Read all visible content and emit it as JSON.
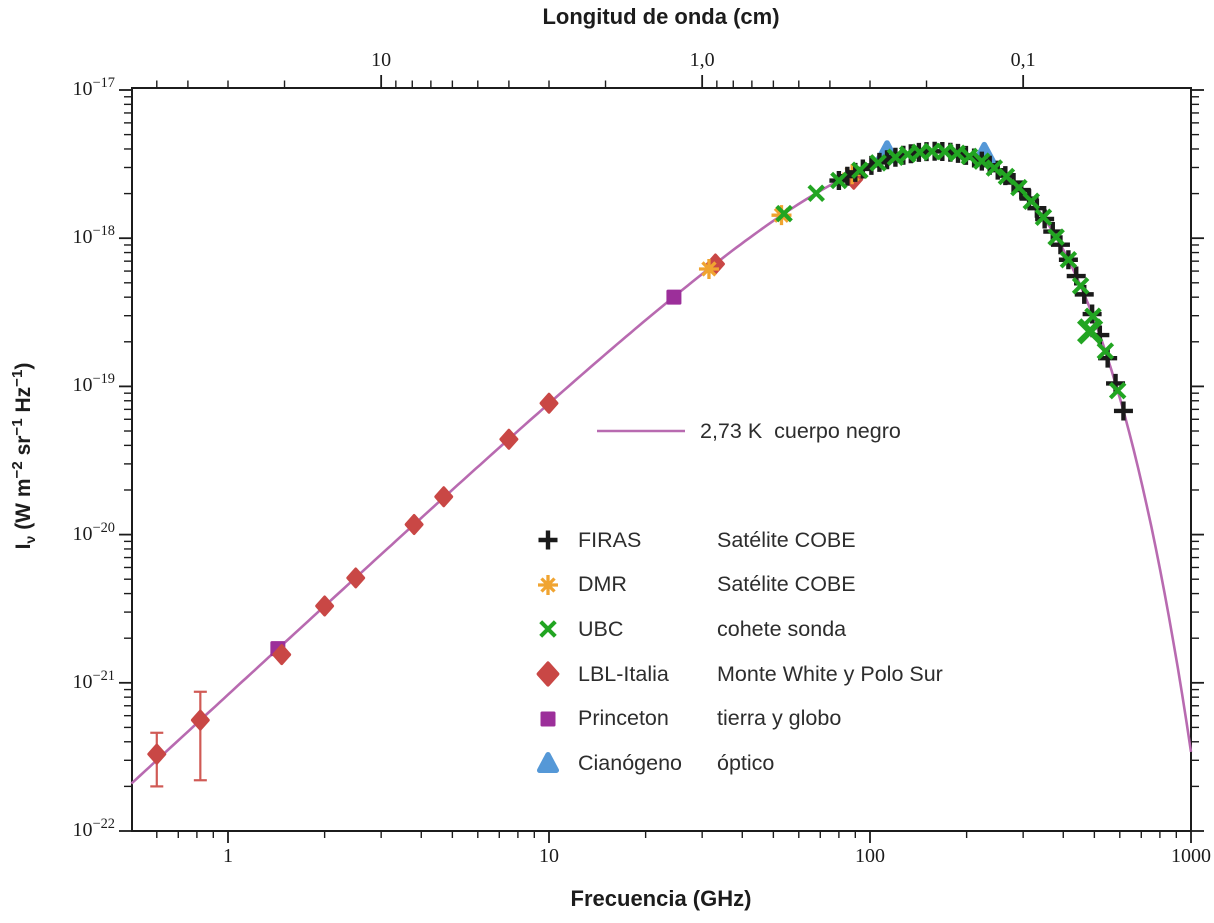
{
  "titles": {
    "top": "Longitud de onda (cm)",
    "bottom": "Frecuencia (GHz)"
  },
  "y_label_segments": [
    {
      "t": "I"
    },
    {
      "t": "ν",
      "sub": true
    },
    {
      "t": " (W m"
    },
    {
      "t": "−2",
      "sup": true
    },
    {
      "t": " sr"
    },
    {
      "t": "−1",
      "sup": true
    },
    {
      "t": " Hz"
    },
    {
      "t": "−1",
      "sup": true
    },
    {
      "t": ")"
    }
  ],
  "curve": {
    "label": "2,73 K  cuerpo negro",
    "color": "#b86ab0"
  },
  "colors": {
    "spine": "#1c1c1c",
    "tick": "#1c1c1c",
    "error_bar": "#d05a55",
    "background": "#ffffff"
  },
  "chart_data": {
    "type": "scatter",
    "title": "",
    "xlabel": "Frecuencia (GHz)",
    "xlabel_top": "Longitud de onda (cm)",
    "ylabel": "Iν (W m−2 sr−1 Hz−1)",
    "axes": {
      "x": {
        "scale": "log",
        "range_GHz": [
          0.5,
          1000
        ],
        "major": [
          1,
          10,
          100,
          1000
        ],
        "major_labels": [
          "1",
          "10",
          "100",
          "1000"
        ],
        "minor": [
          0.6,
          0.7,
          0.8,
          0.9,
          2,
          3,
          4,
          5,
          6,
          7,
          8,
          9,
          20,
          30,
          40,
          50,
          60,
          70,
          80,
          90,
          200,
          300,
          400,
          500,
          600,
          700,
          800,
          900
        ]
      },
      "x_top": {
        "scale": "log-wavelength",
        "c_cm_GHz": 30,
        "major_cm": [
          10,
          1.0,
          0.1
        ],
        "major_labels": [
          "10",
          "1,0",
          "0,1"
        ],
        "minor_cm": [
          50,
          40,
          30,
          20,
          9,
          8,
          7,
          6,
          5,
          4,
          3,
          2,
          0.9,
          0.8,
          0.7,
          0.6,
          0.5,
          0.4,
          0.3,
          0.2
        ]
      },
      "y": {
        "scale": "log",
        "range": [
          1e-22,
          1e-17
        ],
        "major_exp": [
          -17,
          -18,
          -19,
          -20,
          -21,
          -22
        ],
        "minor_mantissas": [
          2,
          3,
          4,
          5,
          6,
          7,
          8,
          9
        ],
        "minor_decades": [
          -18,
          -19,
          -20,
          -21,
          -22
        ]
      }
    },
    "blackbody_curve": {
      "label": "2,73 K  cuerpo negro",
      "temperature_K": 2.73,
      "f_range_GHz": [
        0.5,
        1000
      ],
      "color": "#b86ab0"
    },
    "series": [
      {
        "id": "firas",
        "label": "FIRAS",
        "source": "Satélite COBE",
        "marker": "plus",
        "color": "#1a1a1a",
        "on_curve": true,
        "points_GHz": [
          80,
          85,
          90,
          95,
          101,
          107,
          113,
          120,
          127,
          134,
          142,
          150,
          159,
          168,
          178,
          188,
          199,
          211,
          223,
          236,
          250,
          264,
          280,
          296,
          313,
          331,
          350,
          371,
          392,
          415,
          439,
          465,
          492,
          520,
          550,
          582,
          616
        ]
      },
      {
        "id": "dmr",
        "label": "DMR",
        "source": "Satélite COBE",
        "marker": "asterisk",
        "color": "#f0a431",
        "points": [
          {
            "f": 31.5,
            "i": 6.2e-19
          },
          {
            "f": 53,
            "i": 1.43e-18
          },
          {
            "f": 88,
            "i": 2.7e-18
          }
        ]
      },
      {
        "id": "ubc",
        "label": "UBC",
        "source": "cohete sonda",
        "marker": "x",
        "color": "#22a522",
        "on_curve": true,
        "points_GHz": [
          54,
          68,
          80,
          93,
          106,
          120,
          131,
          143,
          156,
          171,
          187,
          204,
          223,
          244,
          266,
          291,
          318,
          347,
          380,
          415,
          453,
          495,
          541,
          591
        ],
        "outliers": [
          {
            "f": 485,
            "i": 2.35e-19,
            "scale": 1.5
          }
        ]
      },
      {
        "id": "lbl",
        "label": "LBL-Italia",
        "source": "Monte White y Polo Sur",
        "marker": "diamond",
        "color": "#c94745",
        "points": [
          {
            "f": 0.6,
            "i": 3.3e-22,
            "err_lo": 2e-22,
            "err_hi": 4.6e-22
          },
          {
            "f": 0.82,
            "i": 5.6e-22,
            "err_lo": 2.2e-22,
            "err_hi": 8.7e-22
          },
          {
            "f": 1.47,
            "i": 1.55e-21
          },
          {
            "f": 2.0,
            "i": 3.3e-21
          },
          {
            "f": 2.5,
            "i": 5.1e-21
          },
          {
            "f": 3.8,
            "i": 1.17e-20
          },
          {
            "f": 4.7,
            "i": 1.8e-20
          },
          {
            "f": 7.5,
            "i": 4.4e-20
          },
          {
            "f": 10,
            "i": 7.7e-20
          },
          {
            "f": 33,
            "i": 6.7e-19
          },
          {
            "f": 89,
            "i": 2.5e-18
          }
        ]
      },
      {
        "id": "princeton",
        "label": "Princeton",
        "source": "tierra y globo",
        "marker": "square",
        "color": "#9c2f9a",
        "points": [
          {
            "f": 1.43,
            "i": 1.7e-21
          },
          {
            "f": 24.5,
            "i": 4e-19
          }
        ]
      },
      {
        "id": "cyanogen",
        "label": "Cianógeno",
        "source": "óptico",
        "marker": "triangle",
        "color": "#5598d7",
        "points": [
          {
            "f": 113,
            "i": 3.8e-18
          },
          {
            "f": 227,
            "i": 3.7e-18
          }
        ]
      }
    ]
  }
}
